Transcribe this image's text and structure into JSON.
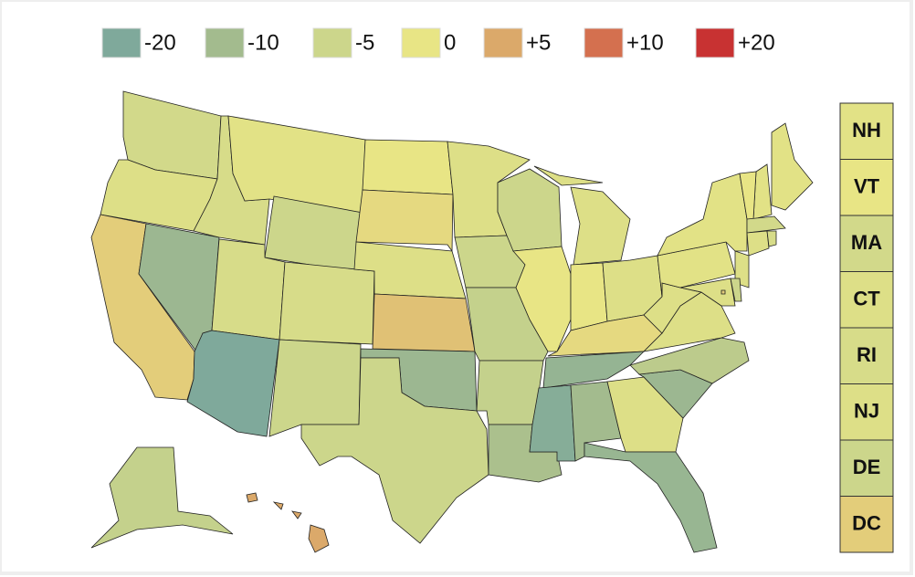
{
  "chart_data": {
    "type": "choropleth",
    "legend": {
      "ticks": [
        -20,
        -10,
        -5,
        0,
        {
          "value": 5,
          "label": "+5"
        },
        {
          "value": 10,
          "label": "+10"
        },
        {
          "value": 20,
          "label": "+20"
        }
      ],
      "colors": [
        "#7fa99b",
        "#a3bb8e",
        "#ccd68b",
        "#e8e585",
        "#dba96a",
        "#d4704f",
        "#c83232"
      ]
    },
    "regions": {
      "values": [
        -4,
        -2,
        2,
        -12,
        -3,
        -1,
        -5,
        -3,
        -20,
        -3,
        -5,
        0,
        1,
        -2,
        3,
        -12,
        -5,
        -2,
        -5,
        -6,
        -6,
        -9,
        -5,
        0,
        -2,
        0,
        -2,
        1,
        -14,
        -18,
        -10,
        -2,
        -13,
        -12,
        -7,
        -2,
        -2,
        -1,
        -1,
        -2,
        -1,
        -6,
        5
      ]
    },
    "boxes": {
      "labels": [
        "NH",
        "VT",
        "MA",
        "CT",
        "RI",
        "NJ",
        "DE",
        "DC"
      ],
      "values": [
        -1,
        0,
        -4,
        -2,
        -3,
        -2,
        -5,
        2
      ]
    }
  }
}
